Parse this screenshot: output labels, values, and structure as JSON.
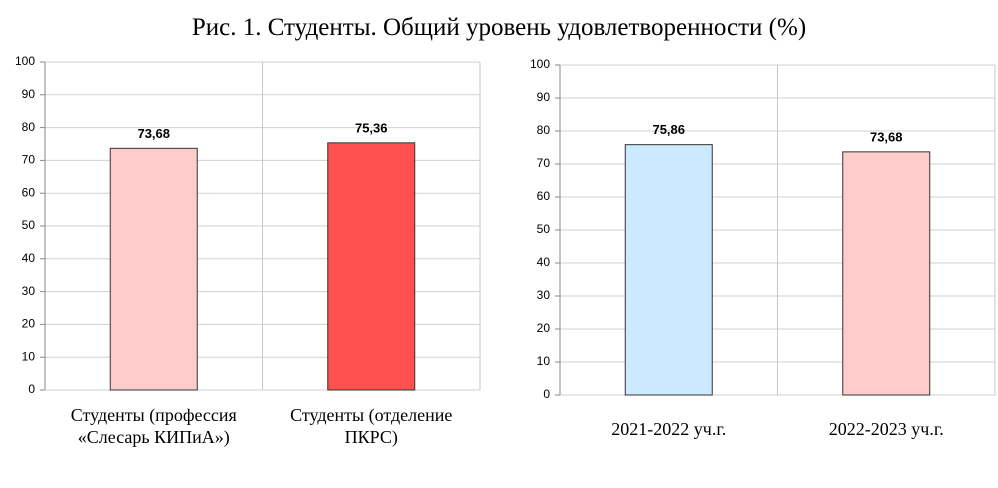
{
  "title": "Рис. 1. Студенты. Общий уровень удовлетворенности (%)",
  "chart_data": [
    {
      "type": "bar",
      "categories": [
        "Студенты (профессия «Слесарь КИПиА»)",
        "Студенты (отделение ПКРС)"
      ],
      "values": [
        73.68,
        75.36
      ],
      "value_labels": [
        "73,68",
        "75,36"
      ],
      "colors": [
        "#ffcccc",
        "#ff5050"
      ],
      "ylim": [
        0,
        100
      ],
      "yticks": [
        0,
        10,
        20,
        30,
        40,
        50,
        60,
        70,
        80,
        90,
        100
      ],
      "grid": true
    },
    {
      "type": "bar",
      "categories": [
        "2021-2022 уч.г.",
        "2022-2023 уч.г."
      ],
      "values": [
        75.86,
        73.68
      ],
      "value_labels": [
        "75,86",
        "73,68"
      ],
      "colors": [
        "#cceaff",
        "#ffcccc"
      ],
      "ylim": [
        0,
        100
      ],
      "yticks": [
        0,
        10,
        20,
        30,
        40,
        50,
        60,
        70,
        80,
        90,
        100
      ],
      "grid": true
    }
  ]
}
